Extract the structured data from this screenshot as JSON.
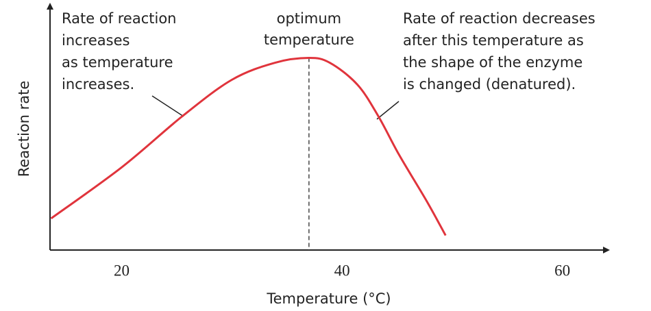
{
  "chart_data": {
    "type": "line",
    "y_label": "Reaction rate",
    "x_label": "Temperature (°C)",
    "x": [
      13.6,
      20,
      25.5,
      30,
      33.9,
      37,
      38.9,
      41.4,
      43.3,
      45.2,
      47.7,
      49.4
    ],
    "values": [
      13,
      34,
      55,
      70,
      77,
      79,
      77,
      68,
      55,
      39,
      20,
      6
    ],
    "color": "#e0343c",
    "xlim": [
      13.5,
      64
    ],
    "xticks": [
      20,
      40,
      60
    ],
    "ylim": [
      0,
      100
    ],
    "reference_line": {
      "x": 37,
      "label": [
        "optimum",
        "temperature"
      ]
    },
    "annotations": [
      {
        "lines": [
          "Rate of reaction",
          "increases",
          "as temperature",
          "increases."
        ]
      },
      {
        "lines": [
          "Rate of reaction decreases",
          "after this temperature as",
          "the shape of the enzyme",
          "is changed (denatured)."
        ]
      }
    ]
  }
}
